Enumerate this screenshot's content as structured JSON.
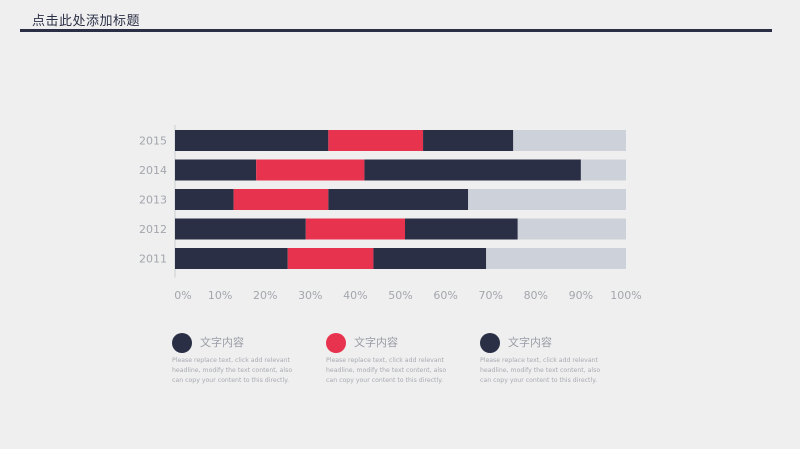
{
  "header": {
    "title": "点击此处添加标题"
  },
  "colors": {
    "navy": "#2a2f45",
    "red": "#e8334f",
    "gray": "#cdd2da",
    "axis": "#cfd2d7",
    "tick": "#a3a6ad"
  },
  "chart_data": {
    "type": "bar",
    "orientation": "horizontal",
    "stacked": true,
    "categories": [
      "2015",
      "2014",
      "2013",
      "2012",
      "2011"
    ],
    "xlim": [
      0,
      100
    ],
    "x_ticks": [
      "0%",
      "10%",
      "20%",
      "30%",
      "40%",
      "50%",
      "60%",
      "70%",
      "80%",
      "90%",
      "100%"
    ],
    "series": [
      {
        "values": [
          34,
          18,
          13,
          29,
          25
        ],
        "color": "#2a2f45"
      },
      {
        "values": [
          21,
          24,
          21,
          22,
          19
        ],
        "color": "#e8334f"
      },
      {
        "values": [
          20,
          48,
          31,
          25,
          25
        ],
        "color": "#2a2f45"
      },
      {
        "values": [
          25,
          10,
          35,
          24,
          31
        ],
        "color": "#cdd2da"
      }
    ],
    "grid": false
  },
  "legend": [
    {
      "title": "文字内容",
      "text": "Please replace text, click add relevant headline, modify the text content, also can copy your content to this directly.",
      "color": "#2a2f45"
    },
    {
      "title": "文字内容",
      "text": "Please replace text, click add relevant headline, modify the text content, also can copy your content to this directly.",
      "color": "#e8334f"
    },
    {
      "title": "文字内容",
      "text": "Please replace text, click add relevant headline, modify the text content, also can copy your content to this directly.",
      "color": "#2a2f45"
    }
  ]
}
